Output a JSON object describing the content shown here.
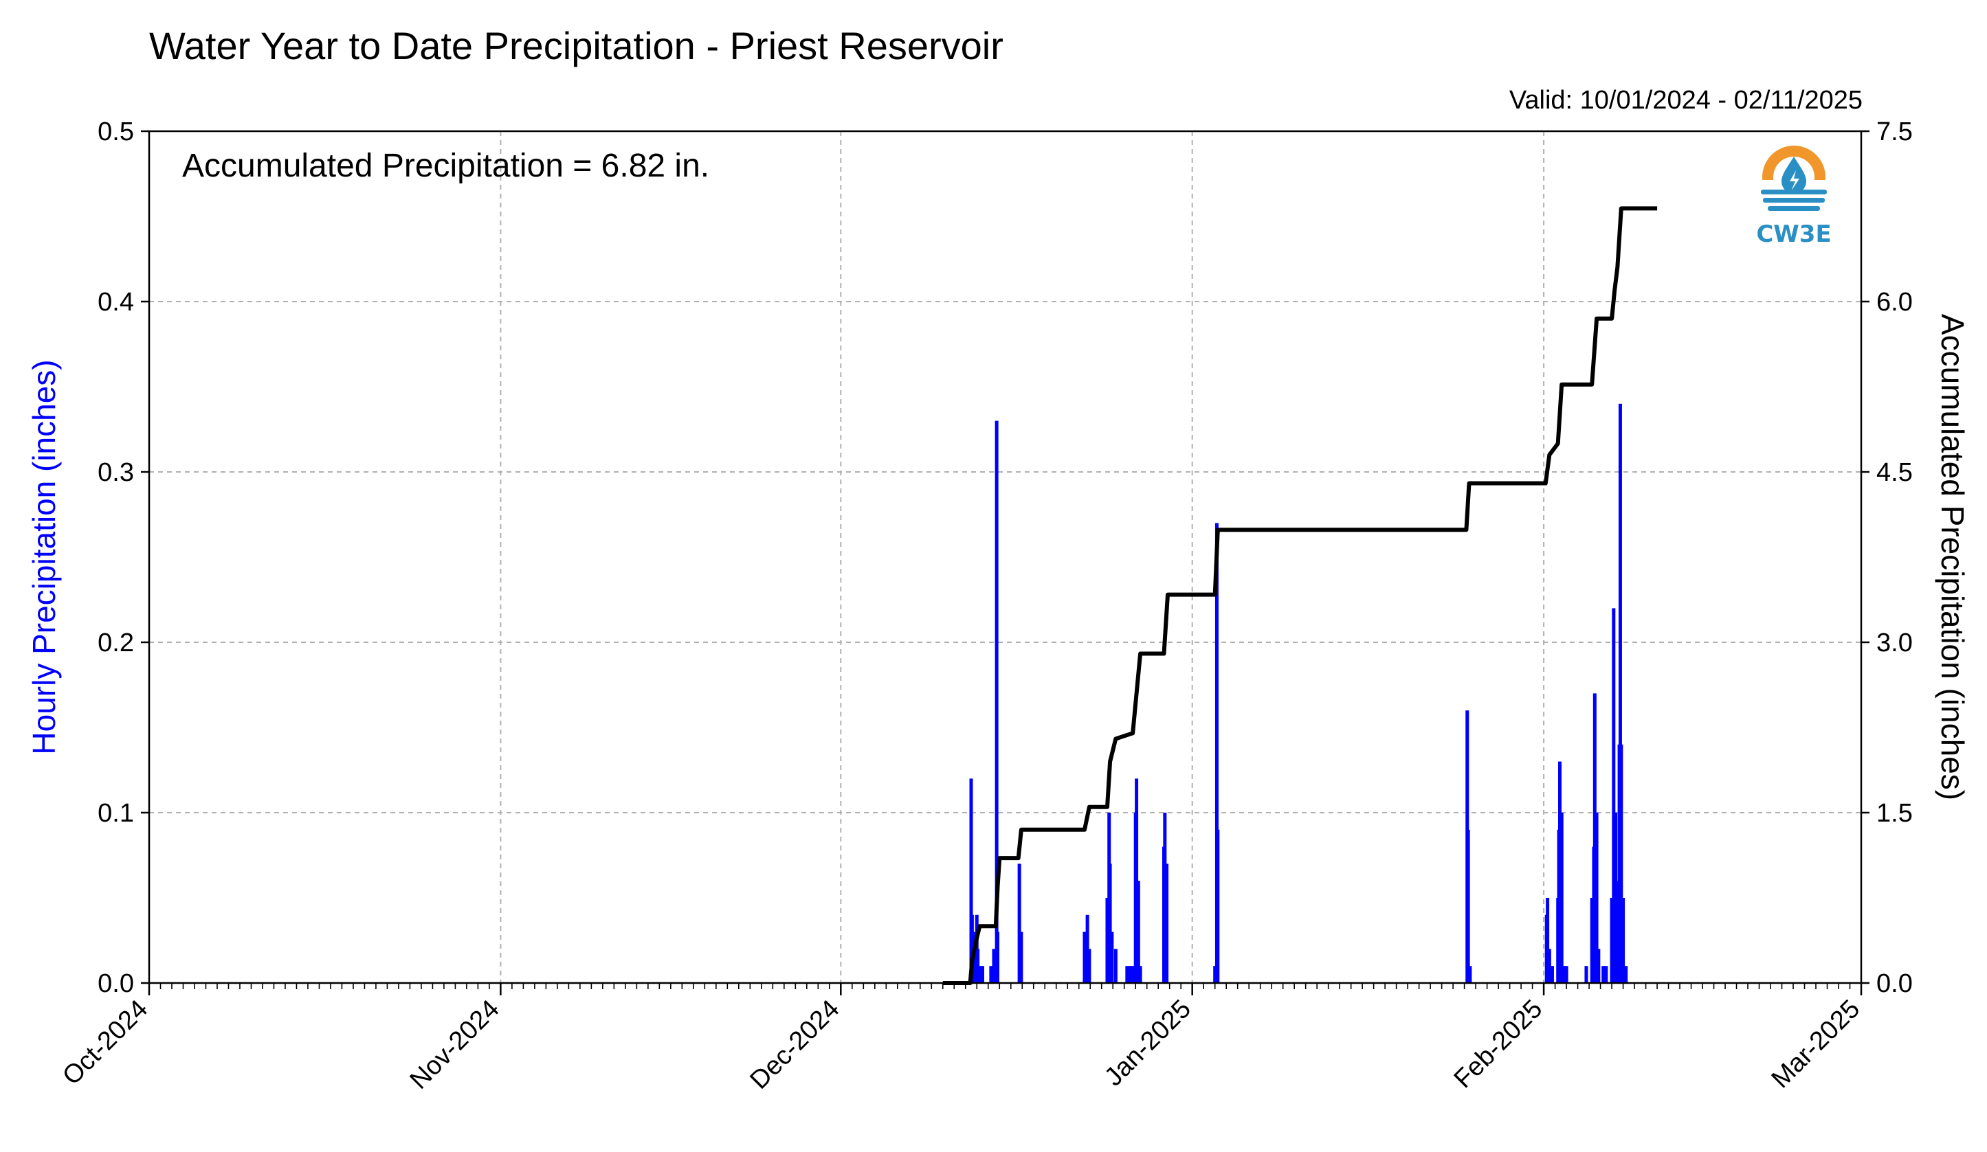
{
  "chart_data": {
    "type": "bar+line",
    "title": "Water Year to Date Precipitation - Priest Reservoir",
    "valid": "Valid: 10/01/2024 - 02/11/2025",
    "annotation": "Accumulated Precipitation = 6.82 in.",
    "y_left_label": "Hourly Precipitation (inches)",
    "y_right_label": "Accumulated Precipitation (inches)",
    "y_left_ticks": [
      "0.0",
      "0.1",
      "0.2",
      "0.3",
      "0.4",
      "0.5"
    ],
    "y_right_ticks": [
      "0.0",
      "1.5",
      "3.0",
      "4.5",
      "6.0",
      "7.5"
    ],
    "y_left_lim": [
      0,
      0.5
    ],
    "y_right_lim": [
      0,
      7.5
    ],
    "x_lim": [
      "2024-10-01",
      "2025-03-01"
    ],
    "x_ticks": [
      {
        "date": "2024-10-01",
        "label": "Oct-2024"
      },
      {
        "date": "2024-11-01",
        "label": "Nov-2024"
      },
      {
        "date": "2024-12-01",
        "label": "Dec-2024"
      },
      {
        "date": "2025-01-01",
        "label": "Jan-2025"
      },
      {
        "date": "2025-02-01",
        "label": "Feb-2025"
      },
      {
        "date": "2025-03-01",
        "label": "Mar-2025"
      }
    ],
    "grid": true,
    "colors": {
      "hourly": "#0000ff",
      "accumulated": "#000000",
      "grid": "#b0b0b0"
    },
    "series": [
      {
        "name": "Hourly Precipitation",
        "kind": "bar",
        "points": [
          [
            "2024-12-12T12",
            0.12
          ],
          [
            "2024-12-12T14",
            0.04
          ],
          [
            "2024-12-12T18",
            0.03
          ],
          [
            "2024-12-13T00",
            0.04
          ],
          [
            "2024-12-13T02",
            0.02
          ],
          [
            "2024-12-13T06",
            0.01
          ],
          [
            "2024-12-13T12",
            0.01
          ],
          [
            "2024-12-14T06",
            0.01
          ],
          [
            "2024-12-14T12",
            0.02
          ],
          [
            "2024-12-14T18",
            0.33
          ],
          [
            "2024-12-14T20",
            0.03
          ],
          [
            "2024-12-16T18",
            0.07
          ],
          [
            "2024-12-16T22",
            0.03
          ],
          [
            "2024-12-22T12",
            0.03
          ],
          [
            "2024-12-22T18",
            0.04
          ],
          [
            "2024-12-22T22",
            0.02
          ],
          [
            "2024-12-24T12",
            0.05
          ],
          [
            "2024-12-24T16",
            0.1
          ],
          [
            "2024-12-24T18",
            0.07
          ],
          [
            "2024-12-24T22",
            0.03
          ],
          [
            "2024-12-25T06",
            0.02
          ],
          [
            "2024-12-26T06",
            0.01
          ],
          [
            "2024-12-26T12",
            0.01
          ],
          [
            "2024-12-26T18",
            0.01
          ],
          [
            "2024-12-27T00",
            0.1
          ],
          [
            "2024-12-27T02",
            0.12
          ],
          [
            "2024-12-27T06",
            0.06
          ],
          [
            "2024-12-27T10",
            0.01
          ],
          [
            "2024-12-29T12",
            0.08
          ],
          [
            "2024-12-29T14",
            0.1
          ],
          [
            "2024-12-29T18",
            0.07
          ],
          [
            "2025-01-03T00",
            0.01
          ],
          [
            "2025-01-03T04",
            0.27
          ],
          [
            "2025-01-03T06",
            0.09
          ],
          [
            "2025-01-25T06",
            0.16
          ],
          [
            "2025-01-25T08",
            0.09
          ],
          [
            "2025-01-25T12",
            0.01
          ],
          [
            "2025-02-01T06",
            0.04
          ],
          [
            "2025-02-01T08",
            0.05
          ],
          [
            "2025-02-01T12",
            0.02
          ],
          [
            "2025-02-01T18",
            0.01
          ],
          [
            "2025-02-02T06",
            0.05
          ],
          [
            "2025-02-02T08",
            0.09
          ],
          [
            "2025-02-02T10",
            0.13
          ],
          [
            "2025-02-02T14",
            0.1
          ],
          [
            "2025-02-02T18",
            0.01
          ],
          [
            "2025-02-03T00",
            0.01
          ],
          [
            "2025-02-04T18",
            0.01
          ],
          [
            "2025-02-05T06",
            0.05
          ],
          [
            "2025-02-05T10",
            0.08
          ],
          [
            "2025-02-05T12",
            0.17
          ],
          [
            "2025-02-05T16",
            0.1
          ],
          [
            "2025-02-05T20",
            0.02
          ],
          [
            "2025-02-06T06",
            0.01
          ],
          [
            "2025-02-06T12",
            0.01
          ],
          [
            "2025-02-07T00",
            0.05
          ],
          [
            "2025-02-07T04",
            0.22
          ],
          [
            "2025-02-07T08",
            0.1
          ],
          [
            "2025-02-07T12",
            0.06
          ],
          [
            "2025-02-07T16",
            0.14
          ],
          [
            "2025-02-07T18",
            0.34
          ],
          [
            "2025-02-07T20",
            0.14
          ],
          [
            "2025-02-08T00",
            0.05
          ],
          [
            "2025-02-08T06",
            0.01
          ]
        ]
      },
      {
        "name": "Accumulated Precipitation",
        "kind": "line",
        "points": [
          [
            "2024-12-10T00",
            0.0
          ],
          [
            "2024-12-12T10",
            0.0
          ],
          [
            "2024-12-12T14",
            0.2
          ],
          [
            "2024-12-13T00",
            0.4
          ],
          [
            "2024-12-13T06",
            0.5
          ],
          [
            "2024-12-14T16",
            0.5
          ],
          [
            "2024-12-14T20",
            0.85
          ],
          [
            "2024-12-15T00",
            1.1
          ],
          [
            "2024-12-16T16",
            1.1
          ],
          [
            "2024-12-16T22",
            1.35
          ],
          [
            "2024-12-22T12",
            1.35
          ],
          [
            "2024-12-22T22",
            1.55
          ],
          [
            "2024-12-24T12",
            1.55
          ],
          [
            "2024-12-24T18",
            1.95
          ],
          [
            "2024-12-25T06",
            2.15
          ],
          [
            "2024-12-26T18",
            2.2
          ],
          [
            "2024-12-27T02",
            2.55
          ],
          [
            "2024-12-27T10",
            2.9
          ],
          [
            "2024-12-29T12",
            2.9
          ],
          [
            "2024-12-29T20",
            3.42
          ],
          [
            "2025-01-03T00",
            3.42
          ],
          [
            "2025-01-03T06",
            3.99
          ],
          [
            "2025-01-25T04",
            3.99
          ],
          [
            "2025-01-25T10",
            4.4
          ],
          [
            "2025-02-01T04",
            4.4
          ],
          [
            "2025-02-01T12",
            4.65
          ],
          [
            "2025-02-02T06",
            4.75
          ],
          [
            "2025-02-02T14",
            5.27
          ],
          [
            "2025-02-05T06",
            5.27
          ],
          [
            "2025-02-05T16",
            5.85
          ],
          [
            "2025-02-07T00",
            5.85
          ],
          [
            "2025-02-07T06",
            6.1
          ],
          [
            "2025-02-07T12",
            6.3
          ],
          [
            "2025-02-07T20",
            6.82
          ],
          [
            "2025-02-11T00",
            6.82
          ]
        ]
      }
    ]
  },
  "logo": {
    "text": "CW3E",
    "icon": "water-drop-icon",
    "colors": {
      "ring": "#f0962a",
      "water": "#2a8fc4"
    }
  }
}
